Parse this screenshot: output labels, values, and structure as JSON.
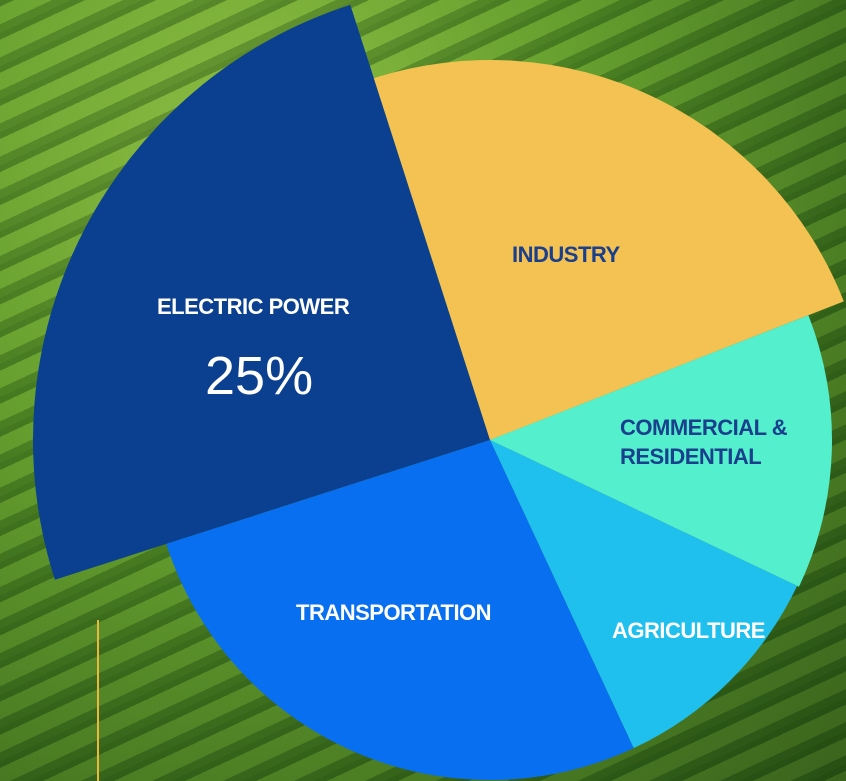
{
  "chart_data": {
    "type": "pie",
    "categories": [
      "ELECTRIC POWER",
      "INDUSTRY",
      "COMMERCIAL & RESIDENTIAL",
      "AGRICULTURE",
      "TRANSPORTATION"
    ],
    "values": [
      25,
      24,
      13,
      11,
      27
    ],
    "value_labels": [
      "25%",
      null,
      null,
      null,
      null
    ],
    "colors": [
      "#0b3f8f",
      "#f4c252",
      "#54f0cd",
      "#20c0ee",
      "#076ff0"
    ]
  }
}
